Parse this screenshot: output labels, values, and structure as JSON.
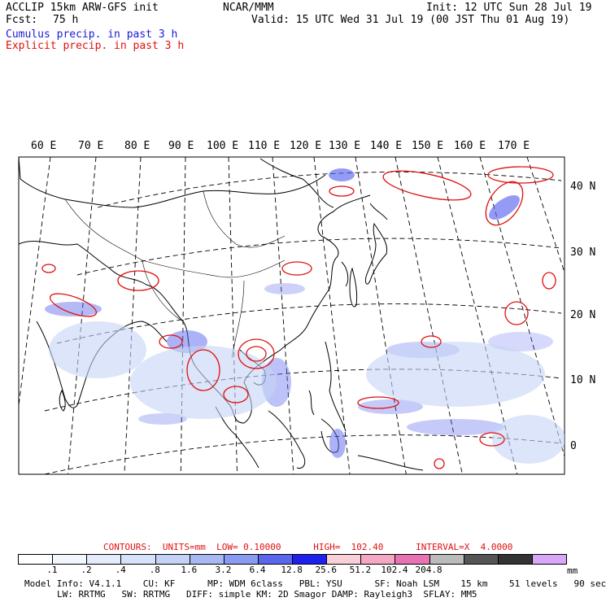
{
  "header": {
    "title_left": "ACCLIP 15km ARW-GFS init",
    "title_center": "NCAR/MMM",
    "init": "Init: 12 UTC Sun 28 Jul 19",
    "fcst_label": "Fcst:",
    "fcst_value": "75 h",
    "valid": "Valid: 15 UTC Wed 31 Jul 19 (00 JST Thu 01 Aug 19)",
    "legend_cumulus": "Cumulus precip. in past 3 h",
    "legend_explicit": "Explicit precip. in past 3 h"
  },
  "map": {
    "lon_labels": [
      "60 E",
      "70 E",
      "80 E",
      "90 E",
      "100 E",
      "110 E",
      "120 E",
      "130 E",
      "140 E",
      "150 E",
      "160 E",
      "170 E"
    ],
    "lat_labels": [
      "40 N",
      "30 N",
      "20 N",
      "10 N",
      "0"
    ]
  },
  "contours": {
    "text": "CONTOURS:  UNITS=mm  LOW= 0.10000      HIGH=  102.40      INTERVAL=X  4.0000"
  },
  "colorbar": {
    "colors": [
      "#ffffff",
      "#f2f6fd",
      "#e4ecfb",
      "#d6e2f8",
      "#c4d3f5",
      "#a9b8f2",
      "#8a9af0",
      "#5a66ee",
      "#2020ee",
      "#f9d0d8",
      "#f5a8c3",
      "#e873b2",
      "#bbbbbb",
      "#555555",
      "#333333",
      "#d8a8f8"
    ],
    "labels": [
      ".1",
      ".2",
      ".4",
      ".8",
      "1.6",
      "3.2",
      "6.4",
      "12.8",
      "25.6",
      "51.2",
      "102.4",
      "204.8"
    ],
    "unit": "mm"
  },
  "footer": {
    "line1": "Model Info: V4.1.1    CU: KF      MP: WDM 6class   PBL: YSU      SF: Noah LSM    15 km    51 levels   90 sec",
    "line2": "LW: RRTMG   SW: RRTMG   DIFF: simple KM: 2D Smagor DAMP: Rayleigh3  SFLAY: MM5"
  }
}
